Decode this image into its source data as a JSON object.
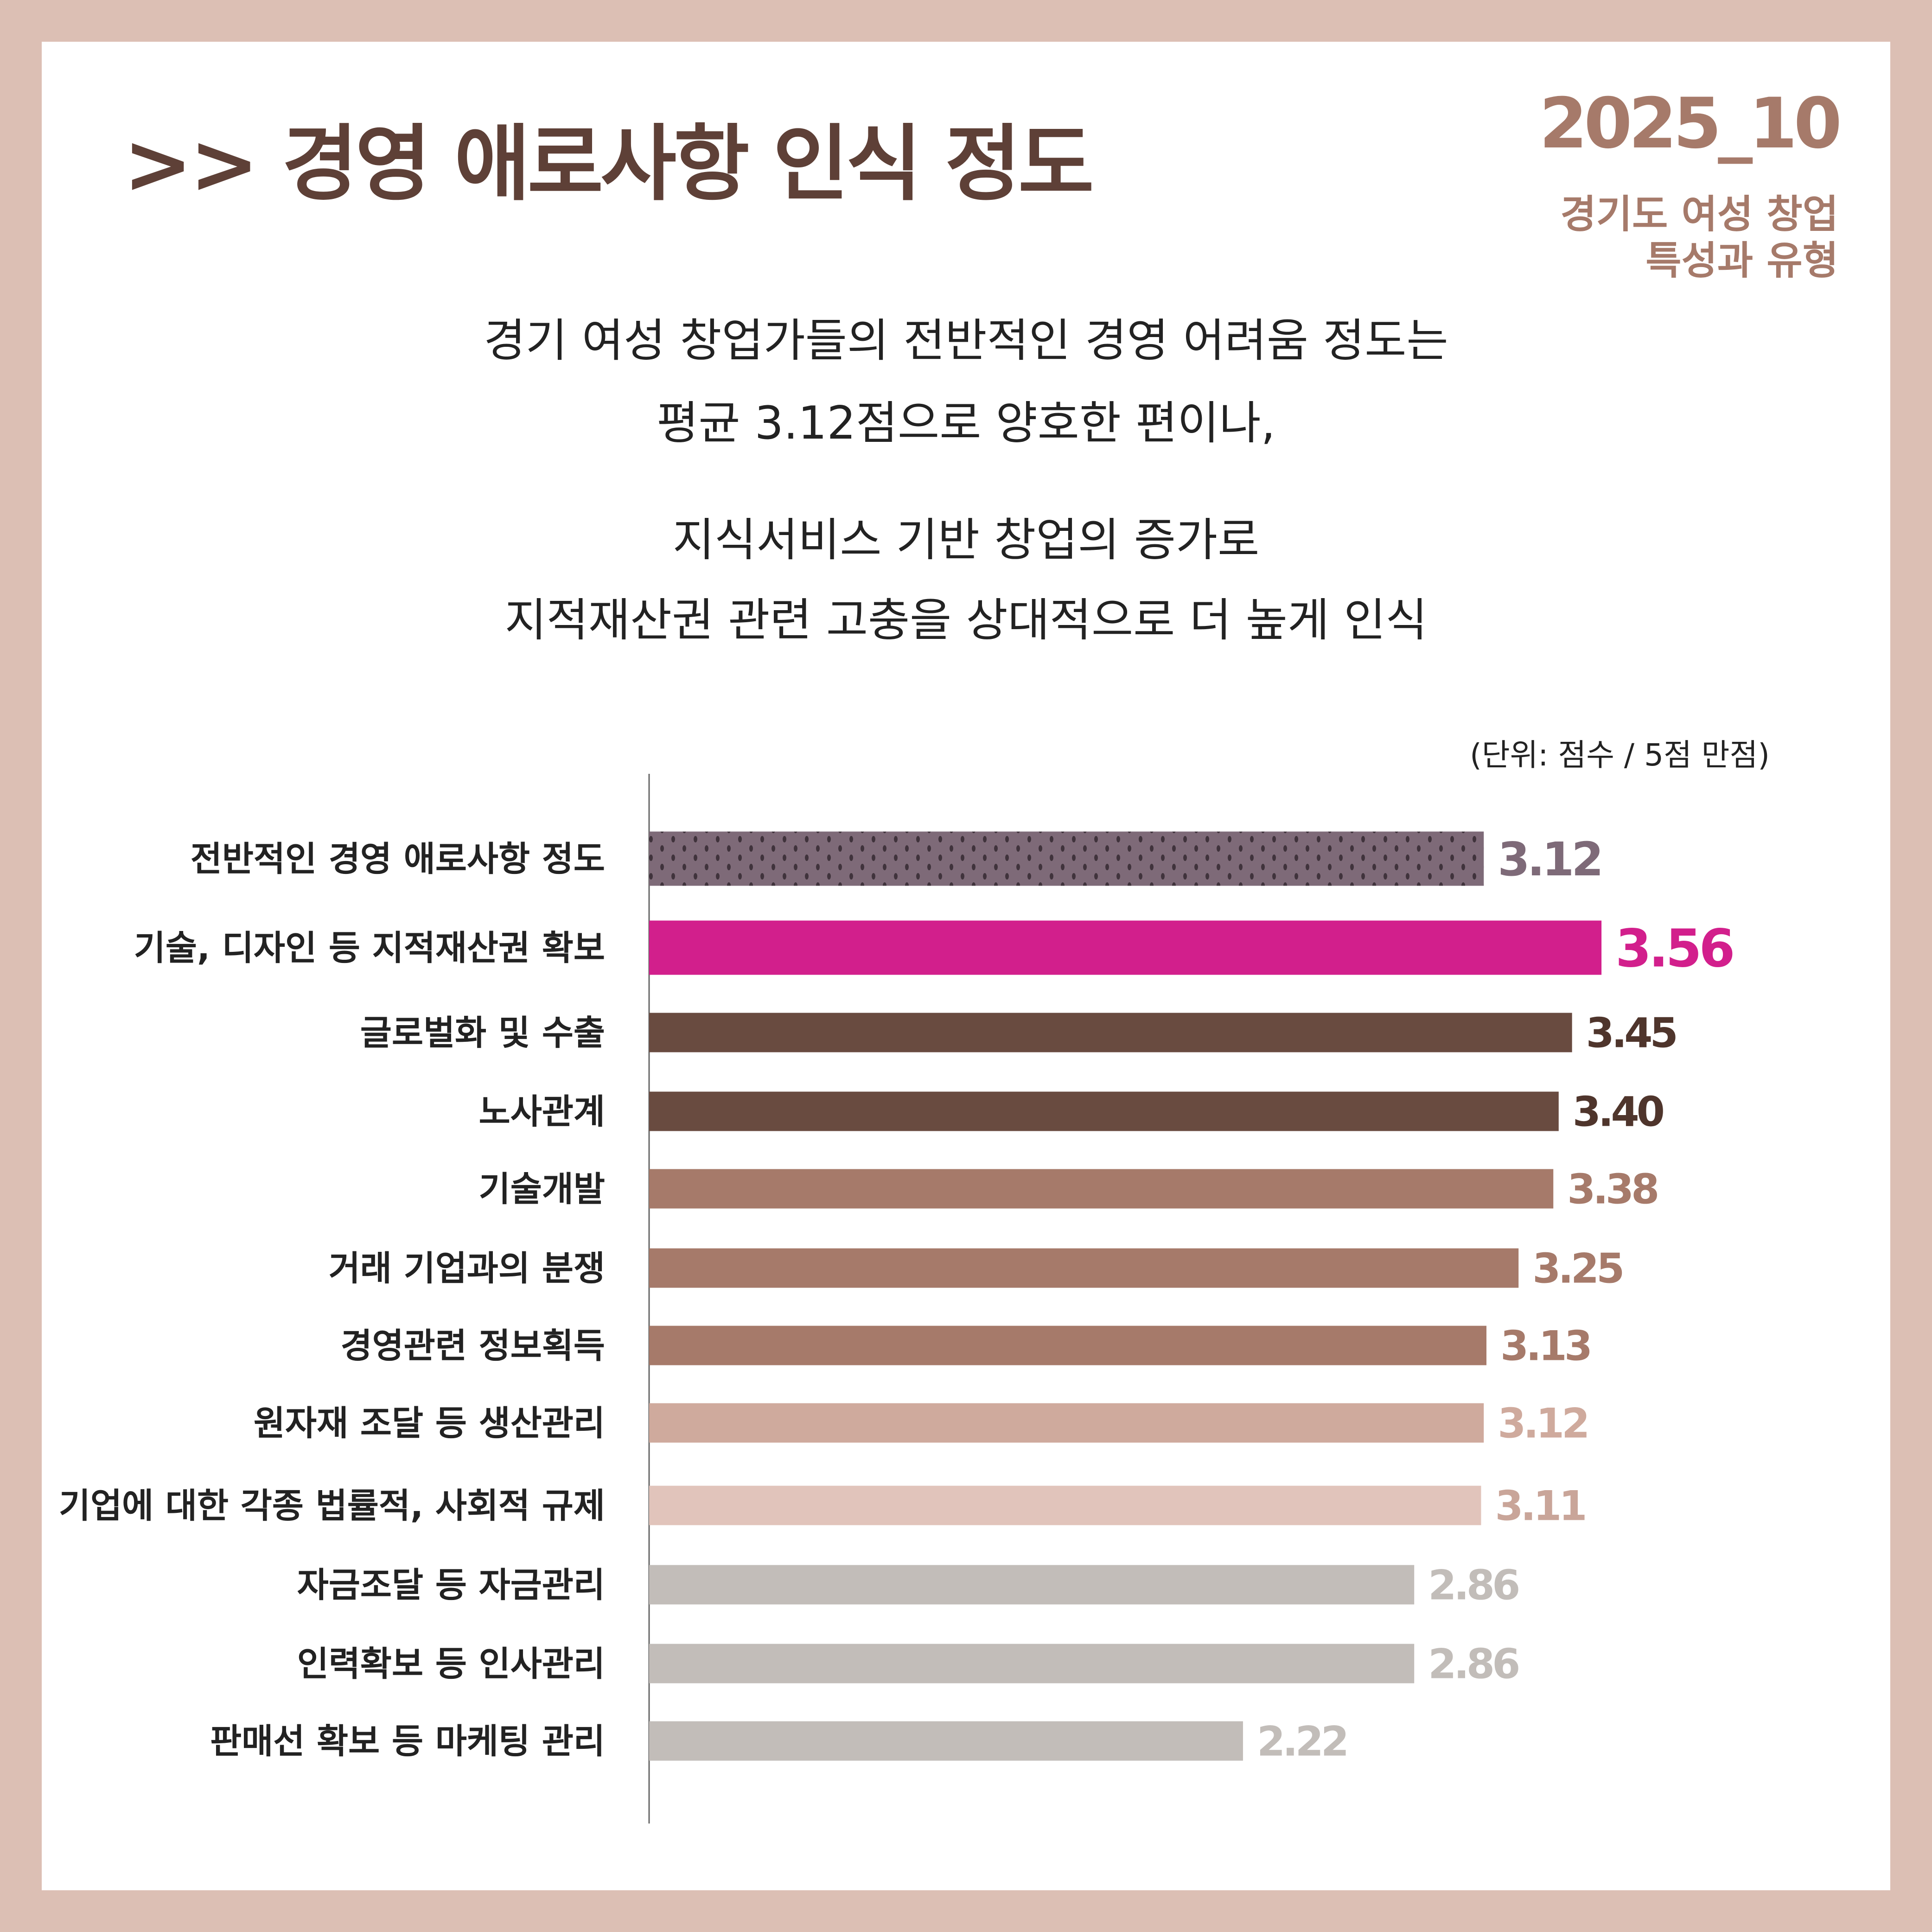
{
  "header": {
    "title": ">> 경영 애로사항 인식 정도",
    "date": "2025_10",
    "subtitle_lines": [
      "경기도 여성 창업",
      "특성과 유형"
    ]
  },
  "description": {
    "lines": [
      "경기 여성 창업가들의 전반적인 경영 어려움 정도는",
      "평균 3.12점으로 양호한 편이나,",
      "지식서비스 기반 창업의 증가로",
      "지적재산권 관련 고충을 상대적으로 더 높게 인식"
    ]
  },
  "chart_data": {
    "type": "bar",
    "orientation": "horizontal",
    "unit_note": "(단위: 점수 / 5점 만점)",
    "categories": [
      "전반적인 경영 애로사항 정도",
      "기술, 디자인 등 지적재산권 확보",
      "글로벌화 및 수출",
      "노사관계",
      "기술개발",
      "거래 기업과의 분쟁",
      "경영관련 정보획득",
      "원자재 조달 등 생산관리",
      "기업에 대한 각종 법률적, 사회적 규제",
      "자금조달 등 자금관리",
      "인력확보 등 인사관리",
      "판매선 확보 등 마케팅 관리"
    ],
    "values": [
      3.12,
      3.56,
      3.45,
      3.4,
      3.38,
      3.25,
      3.13,
      3.12,
      3.11,
      2.86,
      2.86,
      2.22
    ],
    "value_labels": [
      "3.12",
      "3.56",
      "3.45",
      "3.40",
      "3.38",
      "3.25",
      "3.13",
      "3.12",
      "3.11",
      "2.86",
      "2.86",
      "2.22"
    ],
    "bar_colors": [
      "#7e6a78",
      "#d21f8c",
      "#694b40",
      "#694b40",
      "#a67a6a",
      "#a67a6a",
      "#a67a6a",
      "#cfaa9d",
      "#e1c4bb",
      "#c2bdb9",
      "#c2bdb9",
      "#c2bdb9"
    ],
    "label_colors": [
      "#7e6a78",
      "#d21f8c",
      "#4f352c",
      "#4f352c",
      "#a67a6a",
      "#a67a6a",
      "#a67a6a",
      "#cfaa9d",
      "#c9a599",
      "#c2bdb9",
      "#c2bdb9",
      "#c2bdb9"
    ],
    "patterns": [
      "dots",
      "",
      "",
      "",
      "",
      "",
      "",
      "",
      "",
      "",
      "",
      ""
    ],
    "xlim": [
      0,
      5
    ],
    "grid": false,
    "legend": "none"
  }
}
